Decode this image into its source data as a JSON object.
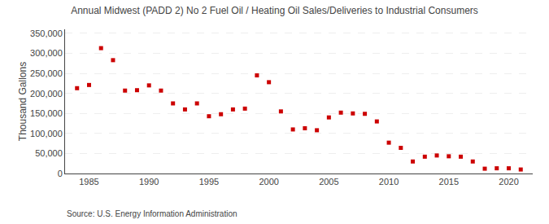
{
  "chart_data": {
    "type": "scatter",
    "title": "Annual Midwest (PADD 2) No 2 Fuel Oil / Heating Oil Sales/Deliveries to Industrial Consumers",
    "y_label": "Thousand Gallons",
    "annotations": [
      "Source: U.S. Energy Information Administration"
    ],
    "x": [
      1984,
      1985,
      1986,
      1987,
      1988,
      1989,
      1990,
      1991,
      1992,
      1993,
      1994,
      1995,
      1996,
      1997,
      1998,
      1999,
      2000,
      2001,
      2002,
      2003,
      2004,
      2005,
      2006,
      2007,
      2008,
      2009,
      2010,
      2011,
      2012,
      2013,
      2014,
      2015,
      2016,
      2017,
      2018,
      2019,
      2020,
      2021
    ],
    "values": [
      213000,
      221000,
      313000,
      283000,
      207000,
      208000,
      220000,
      207000,
      175000,
      160000,
      175000,
      143000,
      148000,
      160000,
      162000,
      245000,
      228000,
      155000,
      110000,
      113000,
      108000,
      140000,
      152000,
      150000,
      149000,
      130000,
      77000,
      64000,
      30000,
      42000,
      45000,
      43000,
      42000,
      30000,
      12000,
      13000,
      13000,
      10000
    ],
    "color": "#cc0000",
    "marker": "square",
    "xlim": [
      1983,
      2022
    ],
    "xticks": [
      1985,
      1990,
      1995,
      2000,
      2005,
      2010,
      2015,
      2020
    ],
    "ylim": [
      0,
      360000
    ],
    "yticks": [
      0,
      {
        "value": 50000,
        "label": "50,000"
      },
      {
        "value": 100000,
        "label": "100,000"
      },
      {
        "value": 150000,
        "label": "150,000"
      },
      {
        "value": 200000,
        "label": "200,000"
      },
      {
        "value": 250000,
        "label": "250,000"
      },
      {
        "value": 300000,
        "label": "300,000"
      },
      {
        "value": 350000,
        "label": "350,000"
      }
    ],
    "grid": "y"
  }
}
